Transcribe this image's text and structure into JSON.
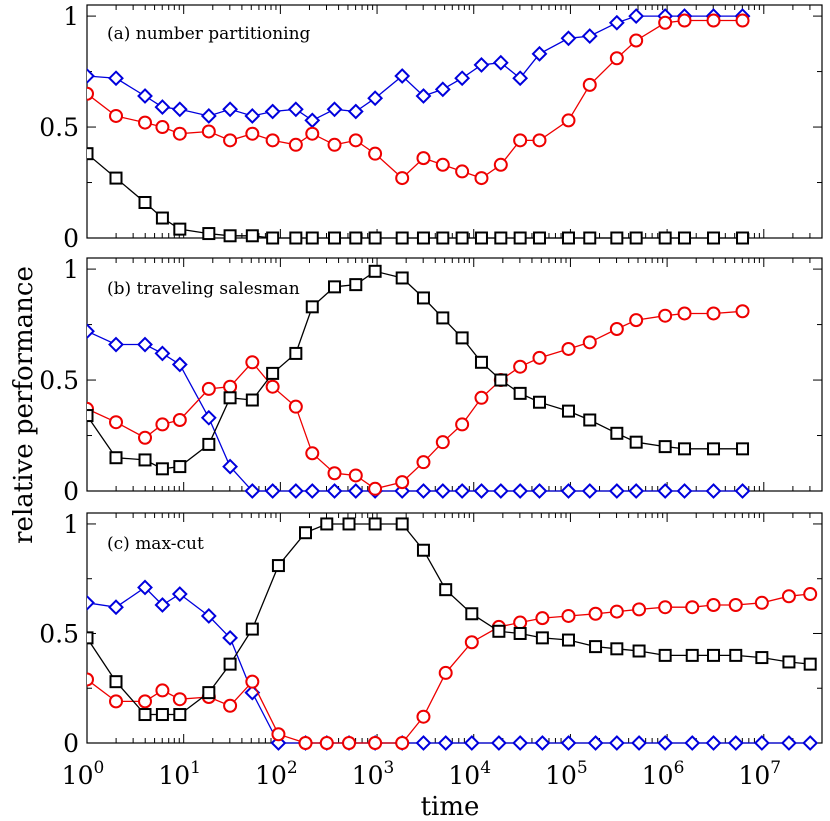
{
  "chart_data": {
    "type": "line",
    "xlabel": "time",
    "ylabel": "relative performance",
    "xscale": "log10",
    "xlim": [
      1,
      40000000
    ],
    "x_tick_labels": [
      {
        "exp": 0,
        "base": "10",
        "sup": "0"
      },
      {
        "exp": 1,
        "base": "10",
        "sup": "1"
      },
      {
        "exp": 2,
        "base": "10",
        "sup": "2"
      },
      {
        "exp": 3,
        "base": "10",
        "sup": "3"
      },
      {
        "exp": 4,
        "base": "10",
        "sup": "4"
      },
      {
        "exp": 5,
        "base": "10",
        "sup": "5"
      },
      {
        "exp": 6,
        "base": "10",
        "sup": "6"
      },
      {
        "exp": 7,
        "base": "10",
        "sup": "7"
      }
    ],
    "y_ticks": [
      0,
      0.5,
      1
    ],
    "y_tick_labels": [
      "0",
      "0.5",
      "1"
    ],
    "series_styles": {
      "diamond": {
        "color": "#0000dd",
        "marker": "diamond"
      },
      "circle": {
        "color": "#ee0000",
        "marker": "circle"
      },
      "square": {
        "color": "#000000",
        "marker": "square"
      }
    },
    "panels": [
      {
        "title": "(a) number partitioning",
        "ylim": [
          0,
          1.05
        ],
        "series": [
          {
            "name": "diamond",
            "x_log10": [
              0,
              0.3,
              0.6,
              0.78,
              0.96,
              1.26,
              1.48,
              1.71,
              1.92,
              2.16,
              2.33,
              2.56,
              2.78,
              2.98,
              3.26,
              3.48,
              3.68,
              3.88,
              4.08,
              4.28,
              4.48,
              4.68,
              4.98,
              5.2,
              5.48,
              5.68,
              5.98,
              6.18,
              6.48,
              6.78
            ],
            "values": [
              0.73,
              0.72,
              0.64,
              0.59,
              0.58,
              0.55,
              0.58,
              0.55,
              0.57,
              0.58,
              0.53,
              0.58,
              0.57,
              0.63,
              0.73,
              0.64,
              0.67,
              0.72,
              0.78,
              0.79,
              0.72,
              0.83,
              0.9,
              0.91,
              0.97,
              1.0,
              1.0,
              1.0,
              1.0,
              1.0
            ]
          },
          {
            "name": "circle",
            "x_log10": [
              0,
              0.3,
              0.6,
              0.78,
              0.96,
              1.26,
              1.48,
              1.71,
              1.92,
              2.16,
              2.33,
              2.56,
              2.78,
              2.98,
              3.26,
              3.48,
              3.68,
              3.88,
              4.08,
              4.28,
              4.48,
              4.68,
              4.98,
              5.2,
              5.48,
              5.68,
              5.98,
              6.18,
              6.48,
              6.78
            ],
            "values": [
              0.65,
              0.55,
              0.52,
              0.5,
              0.47,
              0.48,
              0.44,
              0.47,
              0.44,
              0.42,
              0.47,
              0.42,
              0.44,
              0.38,
              0.27,
              0.36,
              0.33,
              0.3,
              0.27,
              0.33,
              0.44,
              0.44,
              0.53,
              0.69,
              0.81,
              0.89,
              0.97,
              0.98,
              0.98,
              0.98
            ]
          },
          {
            "name": "square",
            "x_log10": [
              0,
              0.3,
              0.6,
              0.78,
              0.96,
              1.26,
              1.48,
              1.71,
              1.92,
              2.16,
              2.33,
              2.56,
              2.78,
              2.98,
              3.26,
              3.48,
              3.68,
              3.88,
              4.08,
              4.28,
              4.48,
              4.68,
              4.98,
              5.2,
              5.48,
              5.68,
              5.98,
              6.18,
              6.48,
              6.78
            ],
            "values": [
              0.38,
              0.27,
              0.16,
              0.09,
              0.04,
              0.02,
              0.01,
              0.01,
              0,
              0,
              0,
              0,
              0,
              0,
              0,
              0,
              0,
              0,
              0,
              0,
              0,
              0,
              0,
              0,
              0,
              0,
              0,
              0,
              0,
              0
            ]
          }
        ]
      },
      {
        "title": "(b) traveling salesman",
        "ylim": [
          0,
          1.05
        ],
        "series": [
          {
            "name": "diamond",
            "x_log10": [
              0,
              0.3,
              0.6,
              0.78,
              0.96,
              1.26,
              1.48,
              1.71,
              1.92,
              2.16,
              2.33,
              2.56,
              2.78,
              2.98,
              3.26,
              3.48,
              3.68,
              3.88,
              4.08,
              4.28,
              4.48,
              4.68,
              4.98,
              5.2,
              5.48,
              5.68,
              5.98,
              6.18,
              6.48,
              6.78
            ],
            "values": [
              0.72,
              0.66,
              0.66,
              0.62,
              0.57,
              0.33,
              0.11,
              0,
              0,
              0,
              0,
              0,
              0,
              0,
              0,
              0,
              0,
              0,
              0,
              0,
              0,
              0,
              0,
              0,
              0,
              0,
              0,
              0,
              0,
              0
            ]
          },
          {
            "name": "circle",
            "x_log10": [
              0,
              0.3,
              0.6,
              0.78,
              0.96,
              1.26,
              1.48,
              1.71,
              1.92,
              2.16,
              2.33,
              2.56,
              2.78,
              2.98,
              3.26,
              3.48,
              3.68,
              3.88,
              4.08,
              4.28,
              4.48,
              4.68,
              4.98,
              5.2,
              5.48,
              5.68,
              5.98,
              6.18,
              6.48,
              6.78
            ],
            "values": [
              0.37,
              0.31,
              0.24,
              0.3,
              0.32,
              0.46,
              0.47,
              0.58,
              0.47,
              0.38,
              0.17,
              0.08,
              0.07,
              0.01,
              0.04,
              0.13,
              0.22,
              0.3,
              0.42,
              0.5,
              0.56,
              0.6,
              0.64,
              0.67,
              0.73,
              0.77,
              0.79,
              0.8,
              0.8,
              0.81
            ]
          },
          {
            "name": "square",
            "x_log10": [
              0,
              0.3,
              0.6,
              0.78,
              0.96,
              1.26,
              1.48,
              1.71,
              1.92,
              2.16,
              2.33,
              2.56,
              2.78,
              2.98,
              3.26,
              3.48,
              3.68,
              3.88,
              4.08,
              4.28,
              4.48,
              4.68,
              4.98,
              5.2,
              5.48,
              5.68,
              5.98,
              6.18,
              6.48,
              6.78
            ],
            "values": [
              0.34,
              0.15,
              0.14,
              0.1,
              0.11,
              0.21,
              0.42,
              0.41,
              0.53,
              0.62,
              0.83,
              0.92,
              0.93,
              0.99,
              0.96,
              0.87,
              0.78,
              0.69,
              0.58,
              0.5,
              0.44,
              0.4,
              0.36,
              0.32,
              0.26,
              0.22,
              0.2,
              0.19,
              0.19,
              0.19
            ]
          }
        ]
      },
      {
        "title": "(c) max-cut",
        "ylim": [
          0,
          1.05
        ],
        "series": [
          {
            "name": "diamond",
            "x_log10": [
              0,
              0.3,
              0.6,
              0.78,
              0.96,
              1.26,
              1.48,
              1.71,
              1.98,
              2.26,
              2.48,
              2.71,
              2.98,
              3.26,
              3.48,
              3.71,
              3.98,
              4.26,
              4.48,
              4.71,
              4.98,
              5.26,
              5.48,
              5.71,
              5.98,
              6.26,
              6.48,
              6.71,
              6.98,
              7.26,
              7.48
            ],
            "values": [
              0.64,
              0.62,
              0.71,
              0.63,
              0.68,
              0.58,
              0.48,
              0.23,
              0,
              0,
              0,
              0,
              0,
              0,
              0,
              0,
              0,
              0,
              0,
              0,
              0,
              0,
              0,
              0,
              0,
              0,
              0,
              0,
              0,
              0,
              0
            ]
          },
          {
            "name": "circle",
            "x_log10": [
              0,
              0.3,
              0.6,
              0.78,
              0.96,
              1.26,
              1.48,
              1.71,
              1.98,
              2.26,
              2.48,
              2.71,
              2.98,
              3.26,
              3.48,
              3.71,
              3.98,
              4.26,
              4.48,
              4.71,
              4.98,
              5.26,
              5.48,
              5.71,
              5.98,
              6.26,
              6.48,
              6.71,
              6.98,
              7.26,
              7.48
            ],
            "values": [
              0.29,
              0.19,
              0.19,
              0.24,
              0.2,
              0.21,
              0.17,
              0.28,
              0.04,
              0,
              0,
              0,
              0,
              0,
              0.12,
              0.32,
              0.46,
              0.53,
              0.55,
              0.57,
              0.58,
              0.59,
              0.6,
              0.61,
              0.62,
              0.62,
              0.63,
              0.63,
              0.64,
              0.67,
              0.68
            ]
          },
          {
            "name": "square",
            "x_log10": [
              0,
              0.3,
              0.6,
              0.78,
              0.96,
              1.26,
              1.48,
              1.71,
              1.98,
              2.26,
              2.48,
              2.71,
              2.98,
              3.26,
              3.48,
              3.71,
              3.98,
              4.26,
              4.48,
              4.71,
              4.98,
              5.26,
              5.48,
              5.71,
              5.98,
              6.26,
              6.48,
              6.71,
              6.98,
              7.26,
              7.48
            ],
            "values": [
              0.48,
              0.28,
              0.13,
              0.13,
              0.13,
              0.23,
              0.36,
              0.52,
              0.81,
              0.96,
              1.0,
              1.0,
              1.0,
              1.0,
              0.88,
              0.7,
              0.59,
              0.51,
              0.5,
              0.48,
              0.47,
              0.44,
              0.43,
              0.42,
              0.4,
              0.4,
              0.4,
              0.4,
              0.39,
              0.37,
              0.36
            ]
          }
        ]
      }
    ]
  }
}
